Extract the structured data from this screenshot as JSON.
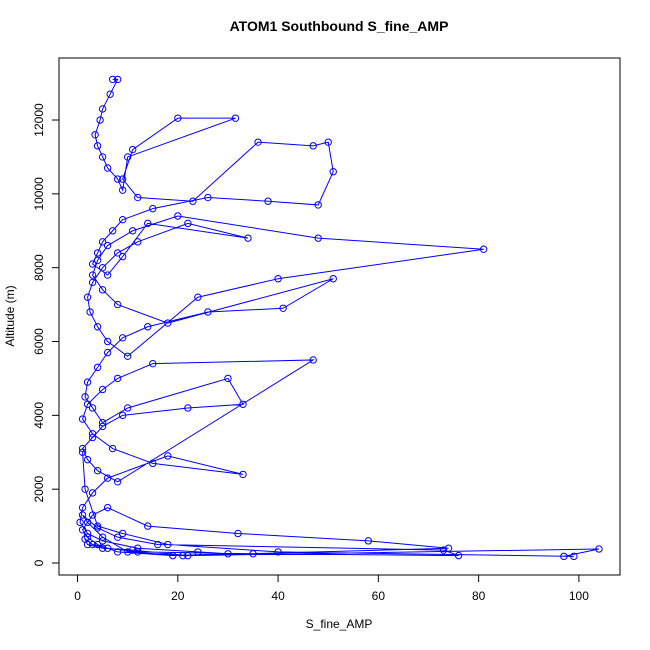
{
  "chart_data": {
    "type": "line",
    "title": "ATOM1 Southbound S_fine_AMP",
    "x_label": "S_fine_AMP",
    "y_label": "Altitude (m)",
    "xlim": [
      -3.7,
      108.2
    ],
    "ylim": [
      -325,
      13680
    ],
    "xticks": [
      0,
      20,
      40,
      60,
      80,
      100
    ],
    "yticks": [
      0,
      2000,
      4000,
      6000,
      8000,
      10000,
      12000
    ],
    "series": [
      {
        "name": "S_fine_AMP",
        "color": "#0000ff",
        "x": [
          7,
          8,
          6.5,
          5,
          4.5,
          3.5,
          4,
          5,
          6,
          8,
          9,
          10,
          31.5,
          20,
          11,
          9,
          12,
          23,
          36,
          47,
          50,
          51,
          48,
          38,
          26,
          15,
          9,
          7,
          5,
          4,
          3,
          6,
          9,
          14,
          34,
          22,
          12,
          8,
          5,
          3,
          2,
          2.5,
          4,
          6,
          10,
          24,
          40,
          81,
          48,
          20,
          11,
          6,
          4,
          3,
          5,
          8,
          18,
          51,
          41,
          26,
          14,
          9,
          6,
          4,
          2,
          1.5,
          3,
          5,
          10,
          30,
          33,
          22,
          9,
          5,
          3,
          1,
          2,
          4,
          8,
          47,
          15,
          8,
          5,
          2,
          1,
          3,
          7,
          15,
          33,
          18,
          6,
          3,
          1,
          0.5,
          2,
          5,
          12,
          24,
          30,
          19,
          8,
          4,
          2,
          1,
          3,
          6,
          14,
          32,
          58,
          74,
          21,
          10,
          5,
          2,
          1,
          4,
          8,
          16,
          73,
          76,
          35,
          12,
          6,
          3,
          1.5,
          2,
          5,
          11,
          22,
          104,
          97,
          99,
          40,
          18,
          9,
          4,
          1.5,
          1
        ],
        "values": [
          13100,
          13100,
          12700,
          12300,
          12000,
          11600,
          11300,
          11000,
          10700,
          10400,
          10100,
          11000,
          12050,
          12050,
          11200,
          10400,
          9900,
          9800,
          11400,
          11300,
          11400,
          10600,
          9700,
          9800,
          9900,
          9600,
          9300,
          9000,
          8700,
          8400,
          8100,
          7800,
          8300,
          9200,
          8800,
          9200,
          8700,
          8400,
          8000,
          7600,
          7200,
          6800,
          6400,
          6000,
          5600,
          7200,
          7700,
          8500,
          8800,
          9400,
          9000,
          8600,
          8200,
          7800,
          7400,
          7000,
          6500,
          7700,
          6900,
          6800,
          6400,
          6100,
          5700,
          5300,
          4900,
          4500,
          4200,
          3800,
          4200,
          5000,
          4300,
          4200,
          4000,
          3700,
          3400,
          3100,
          2800,
          2500,
          2200,
          5500,
          5400,
          5000,
          4700,
          4300,
          3900,
          3500,
          3100,
          2700,
          2400,
          2900,
          2300,
          1900,
          1500,
          1100,
          800,
          600,
          400,
          300,
          250,
          200,
          300,
          500,
          700,
          900,
          1300,
          1500,
          1000,
          800,
          600,
          400,
          200,
          300,
          700,
          1100,
          1300,
          950,
          700,
          500,
          350,
          200,
          250,
          300,
          400,
          500,
          650,
          500,
          400,
          350,
          200,
          380,
          180,
          180,
          300,
          500,
          800,
          1000,
          2000,
          3000
        ]
      }
    ]
  }
}
